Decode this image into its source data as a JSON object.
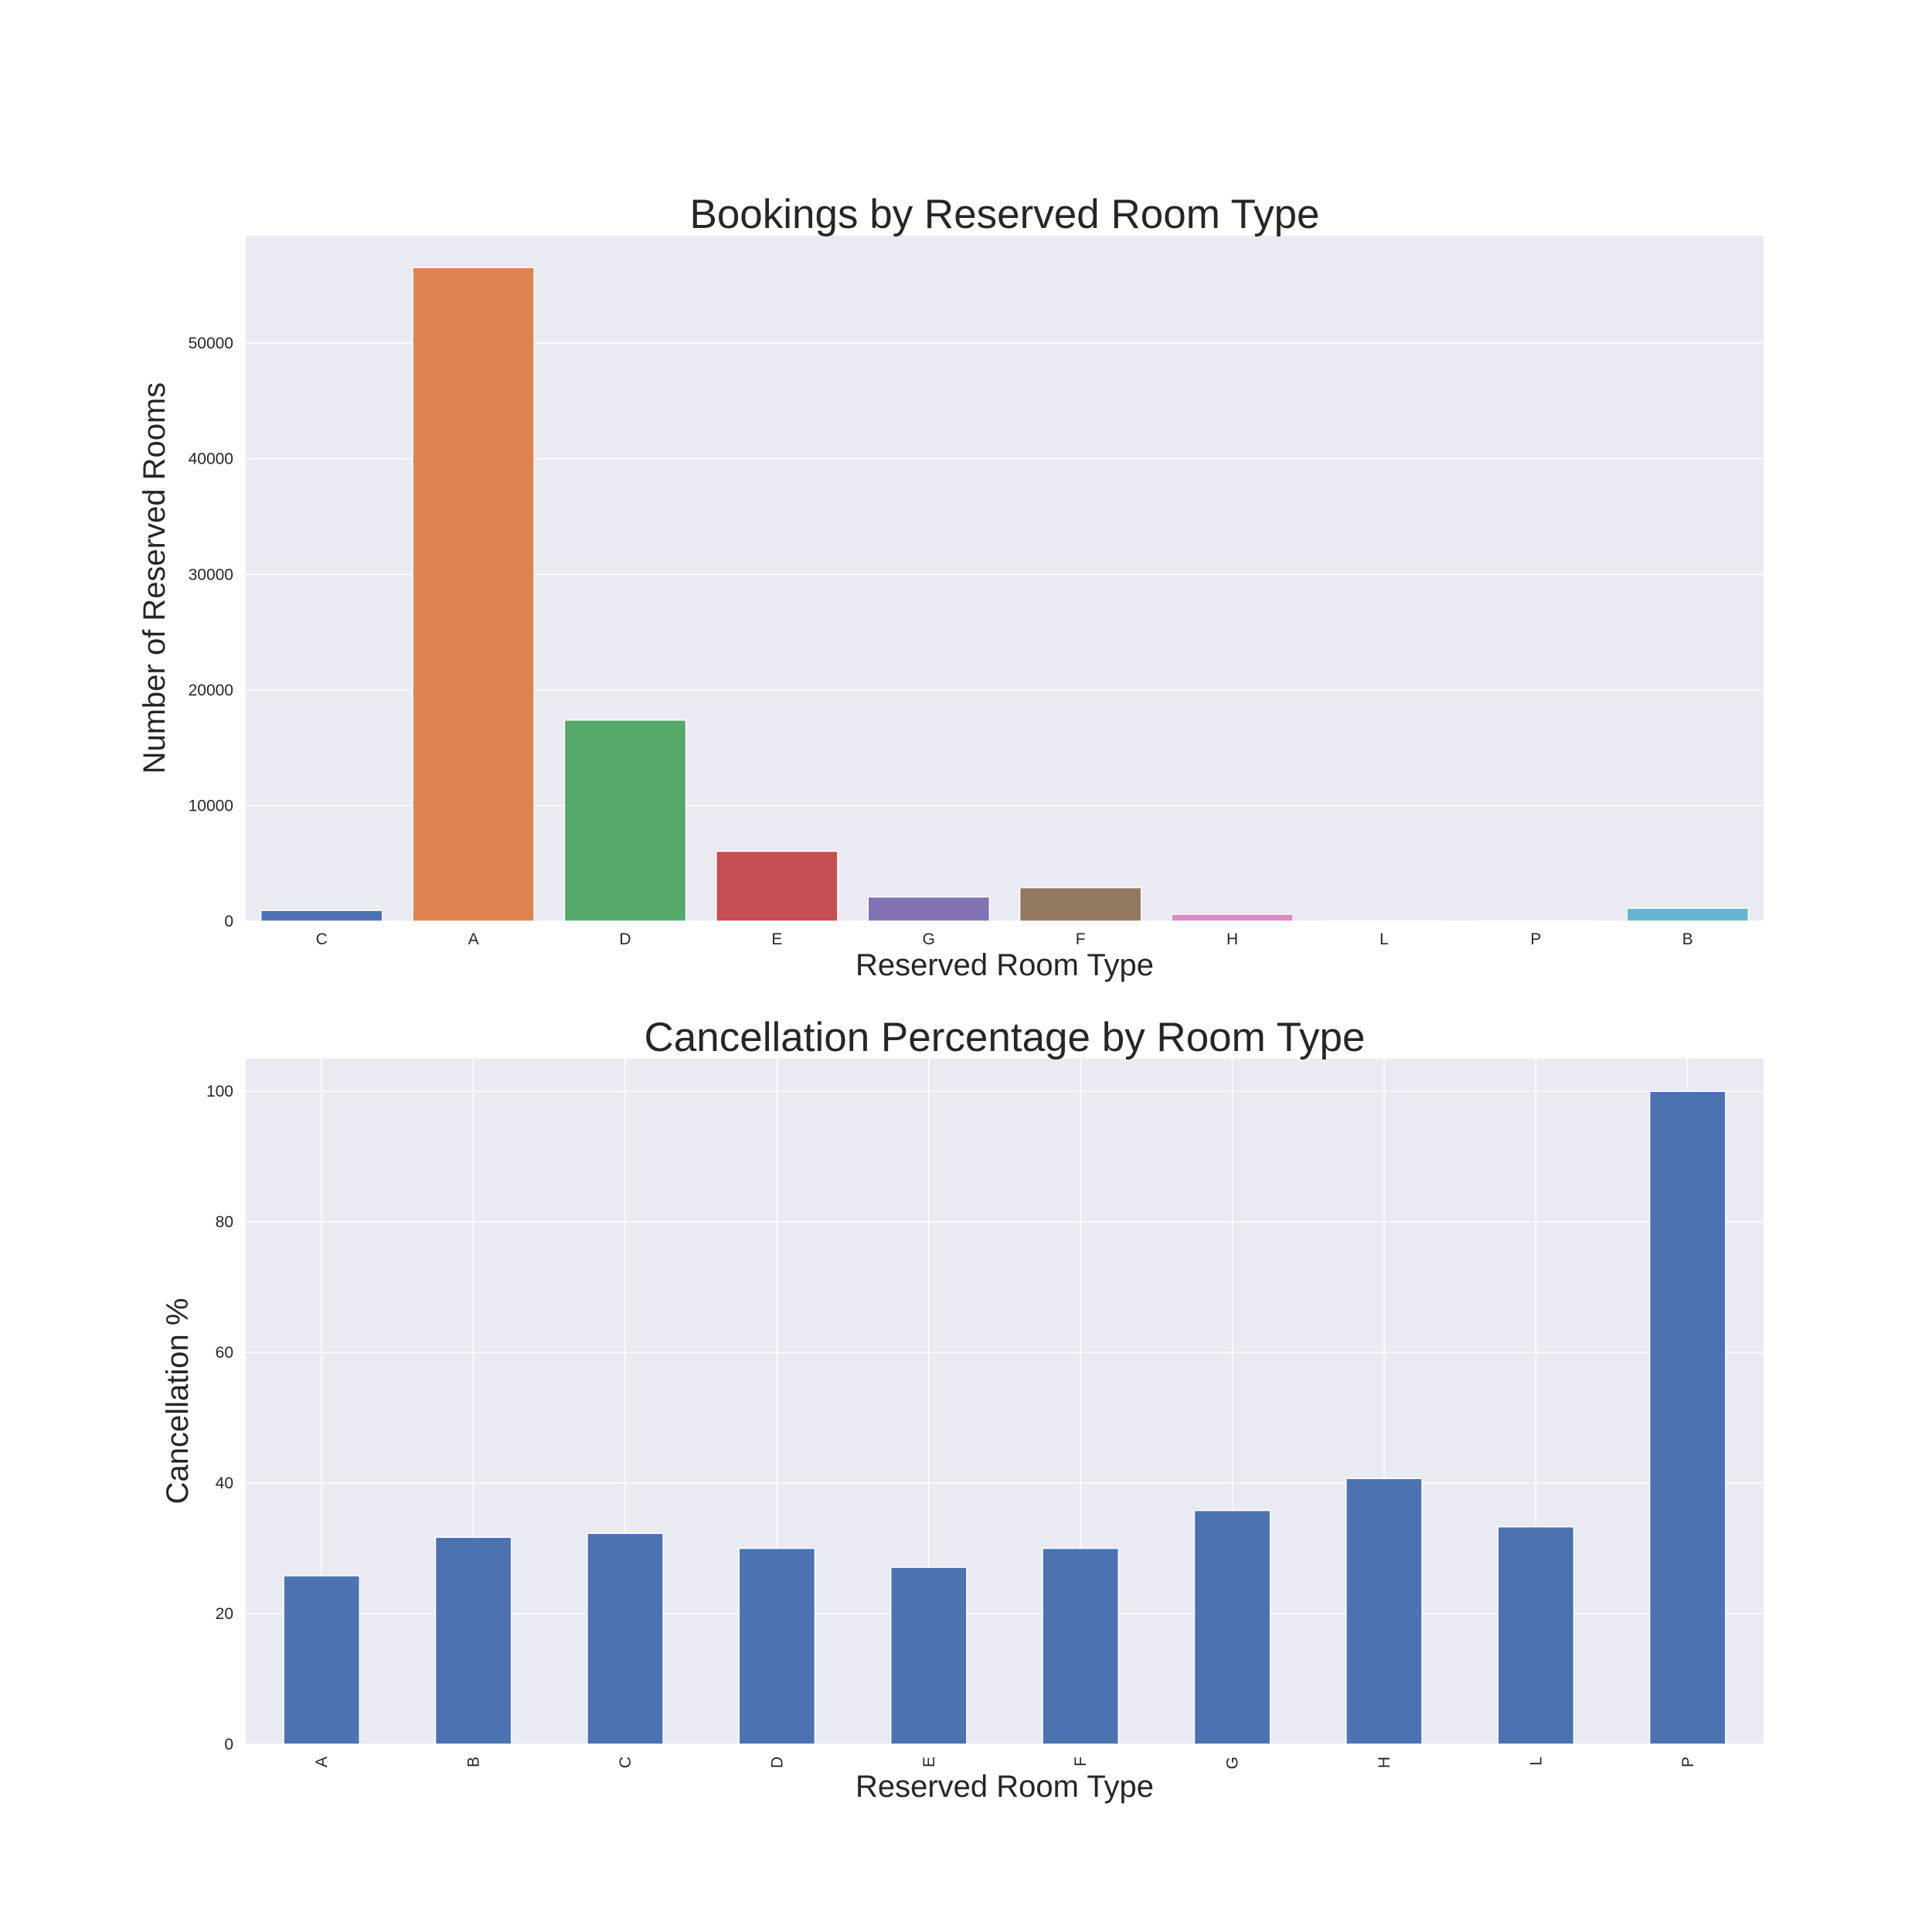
{
  "chart_data": [
    {
      "type": "bar",
      "title": "Bookings by Reserved Room Type",
      "xlabel": "Reserved Room Type",
      "ylabel": "Number of Reserved Rooms",
      "categories": [
        "C",
        "A",
        "D",
        "E",
        "G",
        "F",
        "H",
        "L",
        "P",
        "B"
      ],
      "values": [
        930,
        56550,
        17400,
        6050,
        2100,
        2900,
        600,
        6,
        12,
        1120
      ],
      "colors": [
        "#4c72b0",
        "#dd8452",
        "#55a868",
        "#c44e52",
        "#8172b3",
        "#937860",
        "#da8bc3",
        "#8c8c8c",
        "#ccb974",
        "#64b5cd"
      ],
      "ylim": [
        0,
        59300
      ],
      "yticks": [
        0,
        10000,
        20000,
        30000,
        40000,
        50000
      ],
      "grid": true,
      "gridlines": "horizontal",
      "background": "#eaeaf2"
    },
    {
      "type": "bar",
      "title": "Cancellation Percentage by Room Type",
      "xlabel": "Reserved Room Type",
      "ylabel": "Cancellation %",
      "categories": [
        "A",
        "B",
        "C",
        "D",
        "E",
        "F",
        "G",
        "H",
        "L",
        "P"
      ],
      "values": [
        25.8,
        31.7,
        32.3,
        30.0,
        27.1,
        30.0,
        35.8,
        40.7,
        33.3,
        100.0
      ],
      "colors": [
        "#4c72b0"
      ],
      "ylim": [
        0,
        105
      ],
      "yticks": [
        0,
        20,
        40,
        60,
        80,
        100
      ],
      "grid": true,
      "gridlines": "both",
      "tick_label_rotation": 90,
      "background": "#eaeaf2"
    }
  ]
}
